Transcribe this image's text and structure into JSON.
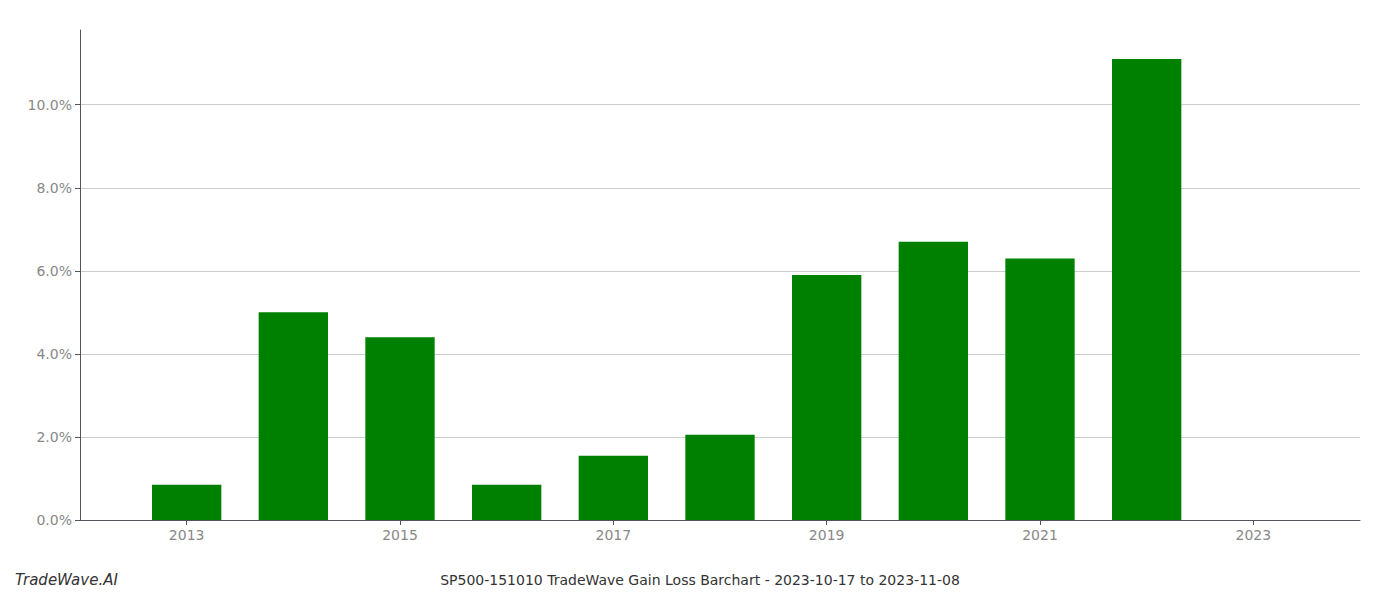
{
  "chart_data": {
    "type": "bar",
    "title": "SP500-151010 TradeWave Gain Loss Barchart - 2023-10-17 to 2023-11-08",
    "annotations": [
      "TradeWave.AI"
    ],
    "x": [
      2013,
      2014,
      2015,
      2016,
      2017,
      2018,
      2019,
      2020,
      2021,
      2022,
      2023
    ],
    "values": [
      0.0085,
      0.05,
      0.044,
      0.0085,
      0.0155,
      0.0205,
      0.059,
      0.067,
      0.063,
      0.111,
      null
    ],
    "color": "#008000",
    "xlim": [
      2012.0,
      2024.0
    ],
    "xticks": [
      2013,
      2015,
      2017,
      2019,
      2021,
      2023
    ],
    "ylim": [
      0,
      0.118
    ],
    "yticks": [
      {
        "value": 0.0,
        "label": "0.0%"
      },
      {
        "value": 0.02,
        "label": "2.0%"
      },
      {
        "value": 0.04,
        "label": "4.0%"
      },
      {
        "value": 0.06,
        "label": "6.0%"
      },
      {
        "value": 0.08,
        "label": "8.0%"
      },
      {
        "value": 0.1,
        "label": "10.0%"
      }
    ],
    "grid": true
  }
}
